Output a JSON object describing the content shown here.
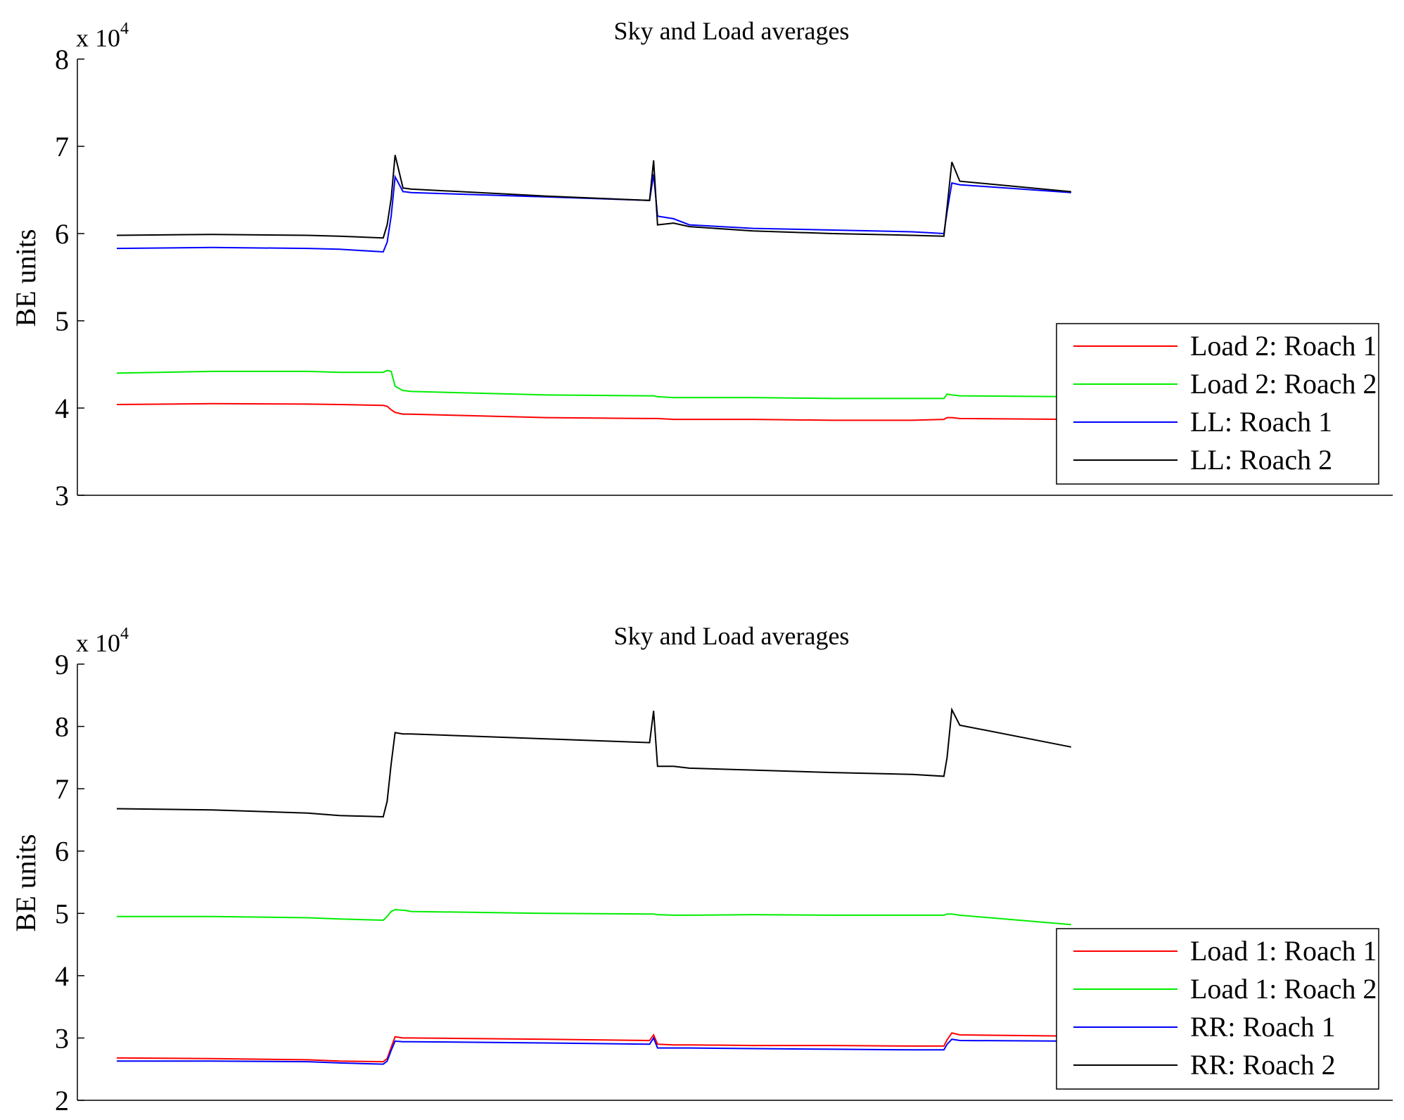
{
  "chart_data": [
    {
      "type": "line",
      "title": "Sky and Load averages",
      "ylabel": "BE units",
      "xlabel": "",
      "exponent_label": "x 10",
      "exponent_power": "4",
      "ylim": [
        30000,
        80000
      ],
      "yticks": [
        3,
        4,
        5,
        6,
        7,
        8
      ],
      "x": [
        0,
        120,
        240,
        280,
        335,
        340,
        345,
        350,
        360,
        362,
        370,
        540,
        670,
        675,
        680,
        700,
        720,
        800,
        900,
        1000,
        1040,
        1044,
        1050,
        1060,
        1200
      ],
      "legend_position": "lower-right",
      "series": [
        {
          "name": "Load 2: Roach 1",
          "color": "#ff0000",
          "values": [
            40400,
            40500,
            40450,
            40400,
            40300,
            40200,
            39800,
            39500,
            39300,
            39300,
            39300,
            38900,
            38800,
            38800,
            38800,
            38700,
            38700,
            38700,
            38600,
            38600,
            38700,
            38900,
            38900,
            38800,
            38700
          ]
        },
        {
          "name": "Load 2: Roach 2",
          "color": "#00ee00",
          "values": [
            44000,
            44200,
            44200,
            44100,
            44100,
            44300,
            44200,
            42500,
            42000,
            42000,
            41900,
            41500,
            41400,
            41400,
            41300,
            41200,
            41200,
            41200,
            41100,
            41100,
            41100,
            41600,
            41500,
            41400,
            41300
          ]
        },
        {
          "name": "LL: Roach 1",
          "color": "#0000ff",
          "values": [
            58300,
            58400,
            58300,
            58200,
            57900,
            59000,
            62000,
            66500,
            64800,
            64800,
            64700,
            64200,
            63800,
            66800,
            62000,
            61700,
            61000,
            60600,
            60400,
            60200,
            60000,
            62500,
            65800,
            65600,
            64700
          ]
        },
        {
          "name": "LL: Roach 2",
          "color": "#000000",
          "values": [
            59800,
            59900,
            59800,
            59700,
            59500,
            61000,
            64000,
            69000,
            65200,
            65200,
            65100,
            64300,
            63800,
            68400,
            61000,
            61200,
            60800,
            60300,
            60000,
            59800,
            59700,
            63000,
            68200,
            66000,
            64800
          ]
        }
      ]
    },
    {
      "type": "line",
      "title": "Sky and Load averages",
      "ylabel": "BE units",
      "xlabel": "",
      "exponent_label": "x 10",
      "exponent_power": "4",
      "ylim": [
        20000,
        90000
      ],
      "yticks": [
        2,
        3,
        4,
        5,
        6,
        7,
        8,
        9
      ],
      "x": [
        0,
        120,
        240,
        280,
        335,
        340,
        345,
        350,
        360,
        362,
        370,
        540,
        670,
        675,
        680,
        700,
        720,
        800,
        900,
        1000,
        1040,
        1044,
        1050,
        1060,
        1200
      ],
      "legend_position": "lower-right",
      "series": [
        {
          "name": "Load 1: Roach 1",
          "color": "#ff0000",
          "values": [
            26800,
            26700,
            26500,
            26300,
            26200,
            26700,
            28500,
            30200,
            30000,
            30000,
            30000,
            29800,
            29600,
            30500,
            29000,
            28900,
            28900,
            28800,
            28800,
            28700,
            28700,
            29700,
            30800,
            30500,
            30300
          ]
        },
        {
          "name": "Load 1: Roach 2",
          "color": "#00ee00",
          "values": [
            49500,
            49500,
            49300,
            49100,
            48900,
            49500,
            50300,
            50600,
            50500,
            50500,
            50300,
            50000,
            49900,
            49900,
            49800,
            49700,
            49700,
            49800,
            49700,
            49700,
            49700,
            49900,
            49900,
            49700,
            48200
          ]
        },
        {
          "name": "RR: Roach 1",
          "color": "#0000ff",
          "values": [
            26300,
            26300,
            26200,
            26000,
            25800,
            26300,
            28000,
            29500,
            29400,
            29400,
            29400,
            29200,
            29000,
            30000,
            28400,
            28400,
            28400,
            28300,
            28200,
            28100,
            28100,
            29000,
            29800,
            29600,
            29500
          ]
        },
        {
          "name": "RR: Roach 2",
          "color": "#000000",
          "values": [
            66800,
            66600,
            66100,
            65700,
            65500,
            68000,
            74000,
            79000,
            78800,
            78800,
            78800,
            78000,
            77400,
            82500,
            73600,
            73600,
            73300,
            73000,
            72600,
            72300,
            72000,
            75000,
            82700,
            80200,
            76700
          ]
        }
      ]
    }
  ]
}
